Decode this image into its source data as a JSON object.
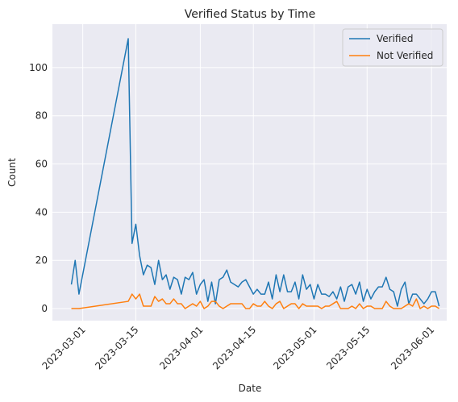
{
  "chart_data": {
    "type": "line",
    "title": "Verified Status by Time",
    "xlabel": "Date",
    "ylabel": "Count",
    "x_axis": "date",
    "xlim": [
      "2023-02-21",
      "2023-06-05"
    ],
    "ylim": [
      -5,
      118
    ],
    "x_ticks": [
      "2023-03-01",
      "2023-03-15",
      "2023-04-01",
      "2023-04-15",
      "2023-05-01",
      "2023-05-15",
      "2023-06-01"
    ],
    "y_ticks": [
      0,
      20,
      40,
      60,
      80,
      100
    ],
    "grid": true,
    "legend_position": "top-right",
    "background": "#eaeaf2",
    "grid_color": "#ffffff",
    "series": [
      {
        "name": "Verified",
        "color": "#1f77b4",
        "points": [
          [
            "2023-02-26",
            10
          ],
          [
            "2023-02-27",
            20
          ],
          [
            "2023-02-28",
            6
          ],
          [
            "2023-03-13",
            112
          ],
          [
            "2023-03-14",
            27
          ],
          [
            "2023-03-15",
            35
          ],
          [
            "2023-03-16",
            22
          ],
          [
            "2023-03-17",
            14
          ],
          [
            "2023-03-18",
            18
          ],
          [
            "2023-03-19",
            17
          ],
          [
            "2023-03-20",
            10
          ],
          [
            "2023-03-21",
            20
          ],
          [
            "2023-03-22",
            12
          ],
          [
            "2023-03-23",
            14
          ],
          [
            "2023-03-24",
            8
          ],
          [
            "2023-03-25",
            13
          ],
          [
            "2023-03-26",
            12
          ],
          [
            "2023-03-27",
            6
          ],
          [
            "2023-03-28",
            13
          ],
          [
            "2023-03-29",
            12
          ],
          [
            "2023-03-30",
            15
          ],
          [
            "2023-03-31",
            6
          ],
          [
            "2023-04-01",
            10
          ],
          [
            "2023-04-02",
            12
          ],
          [
            "2023-04-03",
            3
          ],
          [
            "2023-04-04",
            11
          ],
          [
            "2023-04-05",
            2
          ],
          [
            "2023-04-06",
            12
          ],
          [
            "2023-04-07",
            13
          ],
          [
            "2023-04-08",
            16
          ],
          [
            "2023-04-09",
            11
          ],
          [
            "2023-04-10",
            10
          ],
          [
            "2023-04-11",
            9
          ],
          [
            "2023-04-12",
            11
          ],
          [
            "2023-04-13",
            12
          ],
          [
            "2023-04-14",
            9
          ],
          [
            "2023-04-15",
            6
          ],
          [
            "2023-04-16",
            8
          ],
          [
            "2023-04-17",
            6
          ],
          [
            "2023-04-18",
            6
          ],
          [
            "2023-04-19",
            11
          ],
          [
            "2023-04-20",
            4
          ],
          [
            "2023-04-21",
            14
          ],
          [
            "2023-04-22",
            7
          ],
          [
            "2023-04-23",
            14
          ],
          [
            "2023-04-24",
            7
          ],
          [
            "2023-04-25",
            7
          ],
          [
            "2023-04-26",
            11
          ],
          [
            "2023-04-27",
            4
          ],
          [
            "2023-04-28",
            14
          ],
          [
            "2023-04-29",
            8
          ],
          [
            "2023-04-30",
            10
          ],
          [
            "2023-05-01",
            4
          ],
          [
            "2023-05-02",
            10
          ],
          [
            "2023-05-03",
            6
          ],
          [
            "2023-05-04",
            6
          ],
          [
            "2023-05-05",
            5
          ],
          [
            "2023-05-06",
            7
          ],
          [
            "2023-05-07",
            4
          ],
          [
            "2023-05-08",
            9
          ],
          [
            "2023-05-09",
            3
          ],
          [
            "2023-05-10",
            9
          ],
          [
            "2023-05-11",
            10
          ],
          [
            "2023-05-12",
            6
          ],
          [
            "2023-05-13",
            11
          ],
          [
            "2023-05-14",
            3
          ],
          [
            "2023-05-15",
            8
          ],
          [
            "2023-05-16",
            4
          ],
          [
            "2023-05-17",
            7
          ],
          [
            "2023-05-18",
            9
          ],
          [
            "2023-05-19",
            9
          ],
          [
            "2023-05-20",
            13
          ],
          [
            "2023-05-21",
            8
          ],
          [
            "2023-05-22",
            7
          ],
          [
            "2023-05-23",
            1
          ],
          [
            "2023-05-24",
            8
          ],
          [
            "2023-05-25",
            11
          ],
          [
            "2023-05-26",
            2
          ],
          [
            "2023-05-27",
            6
          ],
          [
            "2023-05-28",
            6
          ],
          [
            "2023-05-29",
            4
          ],
          [
            "2023-05-30",
            2
          ],
          [
            "2023-05-31",
            4
          ],
          [
            "2023-06-01",
            7
          ],
          [
            "2023-06-02",
            7
          ],
          [
            "2023-06-03",
            1
          ]
        ]
      },
      {
        "name": "Not Verified",
        "color": "#ff7f0e",
        "points": [
          [
            "2023-02-26",
            0
          ],
          [
            "2023-02-27",
            0
          ],
          [
            "2023-02-28",
            0
          ],
          [
            "2023-03-13",
            3
          ],
          [
            "2023-03-14",
            6
          ],
          [
            "2023-03-15",
            4
          ],
          [
            "2023-03-16",
            6
          ],
          [
            "2023-03-17",
            1
          ],
          [
            "2023-03-18",
            1
          ],
          [
            "2023-03-19",
            1
          ],
          [
            "2023-03-20",
            5
          ],
          [
            "2023-03-21",
            3
          ],
          [
            "2023-03-22",
            4
          ],
          [
            "2023-03-23",
            2
          ],
          [
            "2023-03-24",
            2
          ],
          [
            "2023-03-25",
            4
          ],
          [
            "2023-03-26",
            2
          ],
          [
            "2023-03-27",
            2
          ],
          [
            "2023-03-28",
            0
          ],
          [
            "2023-03-29",
            1
          ],
          [
            "2023-03-30",
            2
          ],
          [
            "2023-03-31",
            1
          ],
          [
            "2023-04-01",
            3
          ],
          [
            "2023-04-02",
            0
          ],
          [
            "2023-04-03",
            1
          ],
          [
            "2023-04-04",
            3
          ],
          [
            "2023-04-05",
            3
          ],
          [
            "2023-04-06",
            1
          ],
          [
            "2023-04-07",
            0
          ],
          [
            "2023-04-08",
            1
          ],
          [
            "2023-04-09",
            2
          ],
          [
            "2023-04-10",
            2
          ],
          [
            "2023-04-11",
            2
          ],
          [
            "2023-04-12",
            2
          ],
          [
            "2023-04-13",
            0
          ],
          [
            "2023-04-14",
            0
          ],
          [
            "2023-04-15",
            2
          ],
          [
            "2023-04-16",
            1
          ],
          [
            "2023-04-17",
            1
          ],
          [
            "2023-04-18",
            3
          ],
          [
            "2023-04-19",
            1
          ],
          [
            "2023-04-20",
            0
          ],
          [
            "2023-04-21",
            2
          ],
          [
            "2023-04-22",
            3
          ],
          [
            "2023-04-23",
            0
          ],
          [
            "2023-04-24",
            1
          ],
          [
            "2023-04-25",
            2
          ],
          [
            "2023-04-26",
            2
          ],
          [
            "2023-04-27",
            0
          ],
          [
            "2023-04-28",
            2
          ],
          [
            "2023-04-29",
            1
          ],
          [
            "2023-04-30",
            1
          ],
          [
            "2023-05-01",
            1
          ],
          [
            "2023-05-02",
            1
          ],
          [
            "2023-05-03",
            0
          ],
          [
            "2023-05-04",
            1
          ],
          [
            "2023-05-05",
            1
          ],
          [
            "2023-05-06",
            2
          ],
          [
            "2023-05-07",
            3
          ],
          [
            "2023-05-08",
            0
          ],
          [
            "2023-05-09",
            0
          ],
          [
            "2023-05-10",
            0
          ],
          [
            "2023-05-11",
            1
          ],
          [
            "2023-05-12",
            0
          ],
          [
            "2023-05-13",
            2
          ],
          [
            "2023-05-14",
            0
          ],
          [
            "2023-05-15",
            1
          ],
          [
            "2023-05-16",
            1
          ],
          [
            "2023-05-17",
            0
          ],
          [
            "2023-05-18",
            0
          ],
          [
            "2023-05-19",
            0
          ],
          [
            "2023-05-20",
            3
          ],
          [
            "2023-05-21",
            1
          ],
          [
            "2023-05-22",
            0
          ],
          [
            "2023-05-23",
            0
          ],
          [
            "2023-05-24",
            0
          ],
          [
            "2023-05-25",
            1
          ],
          [
            "2023-05-26",
            2
          ],
          [
            "2023-05-27",
            1
          ],
          [
            "2023-05-28",
            4
          ],
          [
            "2023-05-29",
            0
          ],
          [
            "2023-05-30",
            1
          ],
          [
            "2023-05-31",
            0
          ],
          [
            "2023-06-01",
            1
          ],
          [
            "2023-06-02",
            1
          ],
          [
            "2023-06-03",
            0
          ]
        ]
      }
    ]
  }
}
